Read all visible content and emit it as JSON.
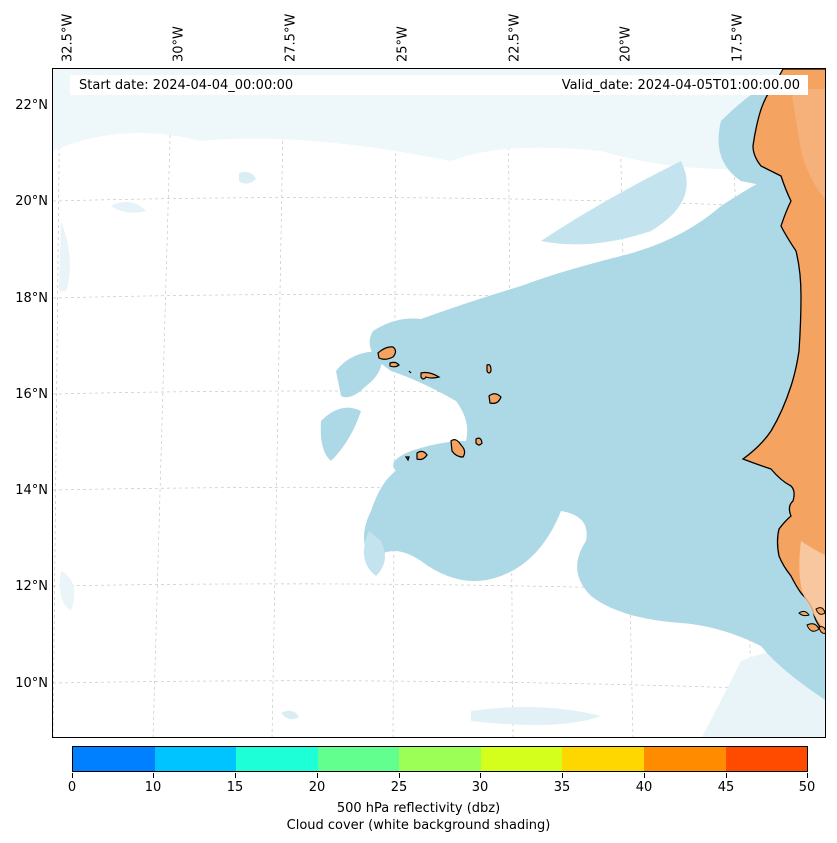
{
  "map": {
    "lon_labels": [
      "32.5°W",
      "30°W",
      "27.5°W",
      "25°W",
      "22.5°W",
      "20°W",
      "17.5°W"
    ],
    "lat_labels": [
      "22°N",
      "20°N",
      "18°N",
      "16°N",
      "14°N",
      "12°N",
      "10°N"
    ],
    "start_date": "Start date: 2024-04-04_00:00:00",
    "valid_date": "Valid_date: 2024-04-05T01:00:00.00",
    "land_color": "#f4a460",
    "cloud_color": "#add8e6",
    "coast_color": "#000000",
    "features": [
      "Cape Verde Islands",
      "West African coast"
    ]
  },
  "colorbar": {
    "colors": [
      "#0080ff",
      "#00c4ff",
      "#1dffd6",
      "#62ff8e",
      "#9bff55",
      "#d4ff1d",
      "#ffd700",
      "#ff8c00",
      "#ff4b00"
    ],
    "ticks": [
      "0",
      "10",
      "15",
      "20",
      "25",
      "30",
      "35",
      "40",
      "45",
      "50"
    ],
    "label": "500 hPa reflectivity (dbz)",
    "sublabel": "Cloud cover (white background shading)"
  }
}
